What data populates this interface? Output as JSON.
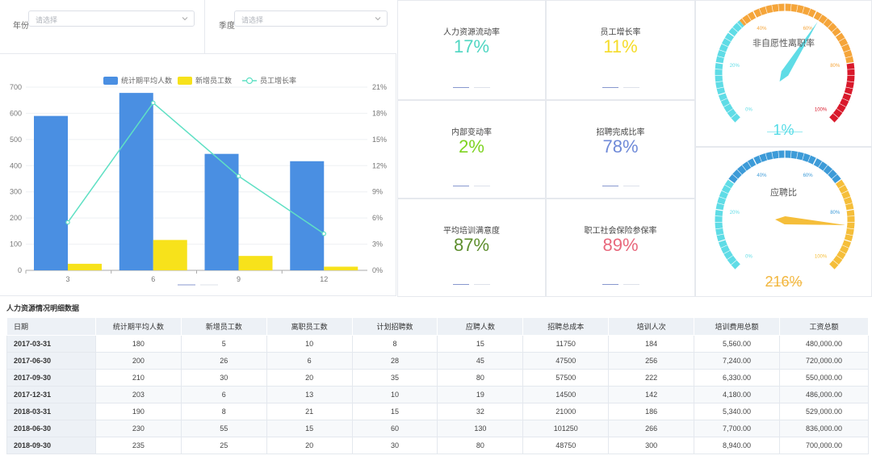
{
  "filters": {
    "year_label": "年份",
    "year_placeholder": "请选择",
    "season_label": "季度",
    "season_placeholder": "请选择"
  },
  "kpis": [
    {
      "title": "人力资源流动率",
      "value": "17%",
      "color": "#4fd6c2"
    },
    {
      "title": "员工增长率",
      "value": "11%",
      "color": "#f5dc2a"
    },
    {
      "title": "内部变动率",
      "value": "2%",
      "color": "#7ed321"
    },
    {
      "title": "招聘完成比率",
      "value": "78%",
      "color": "#6f8ad8"
    },
    {
      "title": "平均培训满意度",
      "value": "87%",
      "color": "#5e8e2e"
    },
    {
      "title": "职工社会保险参保率",
      "value": "89%",
      "color": "#e8687c"
    }
  ],
  "gauges": [
    {
      "title": "非自愿性离职率",
      "value": "1%",
      "value_color": "#52dbe6",
      "pointer": 0.01,
      "ticks": [
        "0%",
        "20%",
        "40%",
        "60%",
        "80%",
        "100%"
      ]
    },
    {
      "title": "应聘比",
      "value": "216%",
      "value_color": "#f2b63d",
      "pointer": 2.16,
      "ticks": [
        "0%",
        "20%",
        "40%",
        "60%",
        "80%",
        "100%"
      ]
    }
  ],
  "chart_data": {
    "type": "bar",
    "categories": [
      "3",
      "6",
      "9",
      "12"
    ],
    "series": [
      {
        "name": "统计期平均人数",
        "type": "bar",
        "axis": "left",
        "color": "#4a8fe2",
        "values": [
          590,
          678,
          445,
          417
        ]
      },
      {
        "name": "新增员工数",
        "type": "bar",
        "axis": "left",
        "color": "#f7e21b",
        "values": [
          25,
          116,
          55,
          14
        ]
      },
      {
        "name": "员工增长率",
        "type": "line",
        "axis": "right",
        "color": "#5fe0c4",
        "values": [
          5.5,
          19.2,
          10.8,
          4.2
        ]
      }
    ],
    "ylim_left": [
      0,
      700
    ],
    "yticks_left": [
      "0",
      "100",
      "200",
      "300",
      "400",
      "500",
      "600",
      "700"
    ],
    "ylim_right": [
      0,
      21
    ],
    "yticks_right": [
      "0%",
      "3%",
      "6%",
      "9%",
      "12%",
      "15%",
      "18%",
      "21%"
    ],
    "legend": "top-center"
  },
  "table": {
    "title": "人力资源情况明细数据",
    "headers": [
      "日期",
      "统计期平均人数",
      "新增员工数",
      "离职员工数",
      "计划招聘数",
      "应聘人数",
      "招聘总成本",
      "培训人次",
      "培训费用总额",
      "工资总额"
    ],
    "rows": [
      [
        "2017-03-31",
        "180",
        "5",
        "10",
        "8",
        "15",
        "11750",
        "184",
        "5,560.00",
        "480,000.00"
      ],
      [
        "2017-06-30",
        "200",
        "26",
        "6",
        "28",
        "45",
        "47500",
        "256",
        "7,240.00",
        "720,000.00"
      ],
      [
        "2017-09-30",
        "210",
        "30",
        "20",
        "35",
        "80",
        "57500",
        "222",
        "6,330.00",
        "550,000.00"
      ],
      [
        "2017-12-31",
        "203",
        "6",
        "13",
        "10",
        "19",
        "14500",
        "142",
        "4,180.00",
        "486,000.00"
      ],
      [
        "2018-03-31",
        "190",
        "8",
        "21",
        "15",
        "32",
        "21000",
        "186",
        "5,340.00",
        "529,000.00"
      ],
      [
        "2018-06-30",
        "230",
        "55",
        "15",
        "60",
        "130",
        "101250",
        "266",
        "7,700.00",
        "836,000.00"
      ],
      [
        "2018-09-30",
        "235",
        "25",
        "20",
        "30",
        "80",
        "48750",
        "300",
        "8,940.00",
        "700,000.00"
      ]
    ]
  }
}
